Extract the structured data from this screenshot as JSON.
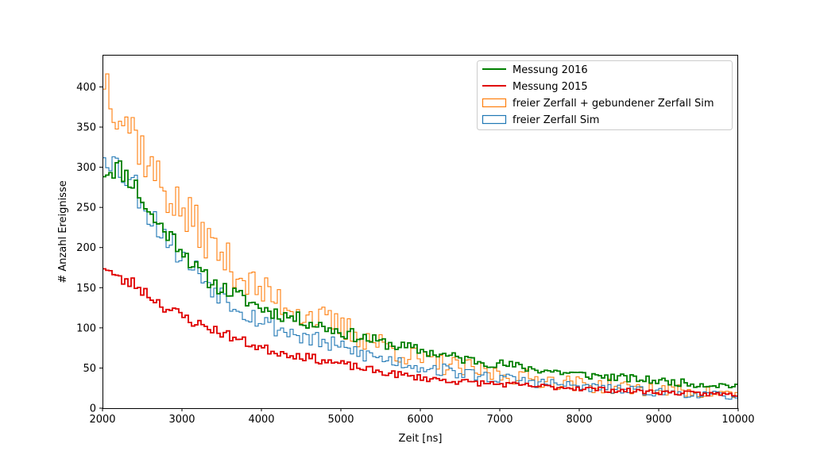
{
  "chart_data": {
    "type": "line",
    "title": "",
    "xlabel": "Zeit [ns]",
    "ylabel": "# Anzahl Ereignisse",
    "xlim": [
      2000,
      10000
    ],
    "ylim": [
      0,
      440
    ],
    "xticks": [
      2000,
      3000,
      4000,
      5000,
      6000,
      7000,
      8000,
      9000,
      10000
    ],
    "yticks": [
      0,
      50,
      100,
      150,
      200,
      250,
      300,
      350,
      400
    ],
    "grid": false,
    "legend_position": "top-right",
    "bin_width": 40,
    "series": [
      {
        "name": "Messung 2016",
        "style": "step-line",
        "color": "#008000",
        "anchors": [
          [
            2000,
            295
          ],
          [
            2200,
            300
          ],
          [
            2400,
            280
          ],
          [
            2600,
            240
          ],
          [
            2800,
            220
          ],
          [
            3000,
            200
          ],
          [
            3200,
            170
          ],
          [
            3400,
            155
          ],
          [
            3600,
            145
          ],
          [
            3800,
            135
          ],
          [
            4000,
            125
          ],
          [
            4200,
            118
          ],
          [
            4500,
            110
          ],
          [
            5000,
            95
          ],
          [
            5500,
            82
          ],
          [
            6000,
            72
          ],
          [
            6500,
            62
          ],
          [
            7000,
            55
          ],
          [
            7500,
            48
          ],
          [
            8000,
            42
          ],
          [
            8500,
            38
          ],
          [
            9000,
            34
          ],
          [
            9500,
            30
          ],
          [
            10000,
            28
          ]
        ],
        "noise": 10,
        "seed": 11
      },
      {
        "name": "Messung 2015",
        "style": "step-line",
        "color": "#e00000",
        "anchors": [
          [
            2000,
            180
          ],
          [
            2200,
            160
          ],
          [
            2400,
            155
          ],
          [
            2600,
            140
          ],
          [
            2800,
            125
          ],
          [
            3000,
            115
          ],
          [
            3200,
            105
          ],
          [
            3400,
            98
          ],
          [
            3600,
            90
          ],
          [
            3800,
            82
          ],
          [
            4000,
            75
          ],
          [
            4200,
            70
          ],
          [
            4500,
            65
          ],
          [
            5000,
            55
          ],
          [
            5500,
            45
          ],
          [
            6000,
            38
          ],
          [
            6500,
            33
          ],
          [
            7000,
            30
          ],
          [
            7500,
            27
          ],
          [
            8000,
            25
          ],
          [
            8500,
            22
          ],
          [
            9000,
            20
          ],
          [
            9500,
            18
          ],
          [
            10000,
            17
          ]
        ],
        "noise": 8,
        "seed": 23
      },
      {
        "name": "freier Zerfall + gebundener Zerfall Sim",
        "style": "step-hist",
        "color": "#ff7f0e",
        "anchors": [
          [
            2000,
            420
          ],
          [
            2200,
            375
          ],
          [
            2400,
            345
          ],
          [
            2600,
            300
          ],
          [
            2800,
            270
          ],
          [
            3000,
            245
          ],
          [
            3200,
            225
          ],
          [
            3400,
            200
          ],
          [
            3600,
            180
          ],
          [
            3800,
            160
          ],
          [
            4000,
            145
          ],
          [
            4200,
            135
          ],
          [
            4500,
            120
          ],
          [
            5000,
            100
          ],
          [
            5500,
            80
          ],
          [
            6000,
            60
          ],
          [
            6500,
            50
          ],
          [
            7000,
            42
          ],
          [
            7500,
            36
          ],
          [
            8000,
            30
          ],
          [
            8500,
            26
          ],
          [
            9000,
            23
          ],
          [
            9500,
            20
          ],
          [
            10000,
            17
          ]
        ],
        "noise": 22,
        "seed": 37
      },
      {
        "name": "freier Zerfall Sim",
        "style": "step-hist",
        "color": "#1f77b4",
        "anchors": [
          [
            2000,
            325
          ],
          [
            2200,
            300
          ],
          [
            2400,
            280
          ],
          [
            2600,
            240
          ],
          [
            2800,
            215
          ],
          [
            3000,
            190
          ],
          [
            3200,
            170
          ],
          [
            3400,
            150
          ],
          [
            3600,
            135
          ],
          [
            3800,
            120
          ],
          [
            4000,
            110
          ],
          [
            4200,
            100
          ],
          [
            4500,
            90
          ],
          [
            5000,
            75
          ],
          [
            5500,
            62
          ],
          [
            6000,
            52
          ],
          [
            6500,
            44
          ],
          [
            7000,
            37
          ],
          [
            7500,
            32
          ],
          [
            8000,
            27
          ],
          [
            8500,
            23
          ],
          [
            9000,
            20
          ],
          [
            9500,
            17
          ],
          [
            10000,
            15
          ]
        ],
        "noise": 15,
        "seed": 53
      }
    ]
  }
}
